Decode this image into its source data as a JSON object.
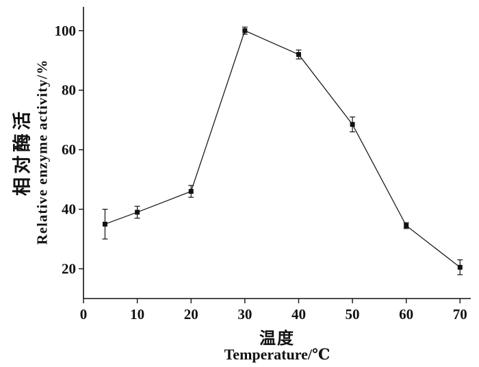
{
  "chart_data": {
    "type": "line",
    "title": "",
    "xlabel_zh": "温度",
    "xlabel_en": "Temperature/℃",
    "ylabel_zh": "相对酶活",
    "ylabel_en": "Relative enzyme activity/%",
    "x": [
      4,
      10,
      20,
      30,
      40,
      50,
      60,
      70
    ],
    "series": [
      {
        "name": "relative enzyme activity",
        "values": [
          35,
          39,
          46,
          100,
          92,
          68.5,
          34.5,
          20.5
        ],
        "errors": [
          5,
          2,
          2,
          1.2,
          1.5,
          2.5,
          1,
          2.5
        ]
      }
    ],
    "xticks": [
      0,
      10,
      20,
      30,
      40,
      50,
      60,
      70
    ],
    "yticks": [
      20,
      40,
      60,
      80,
      100
    ],
    "xlim": [
      0,
      72
    ],
    "ylim": [
      10,
      108
    ],
    "grid": false,
    "legend": "none",
    "marker": "filled-square",
    "error_bars": true,
    "line_color": "#1a1a1a",
    "marker_color": "#111111",
    "axis_color": "#111111"
  }
}
